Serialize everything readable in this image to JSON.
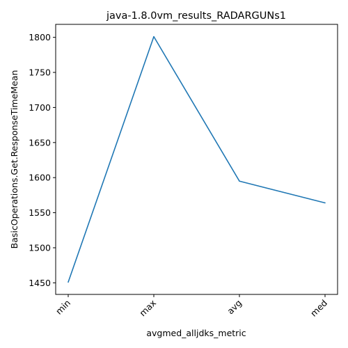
{
  "chart_data": {
    "type": "line",
    "title": "java-1.8.0vm_results_RADARGUNs1",
    "xlabel": "avgmed_alljdks_metric",
    "ylabel": "BasicOperations.Get.ResponseTimeMean",
    "categories": [
      "min",
      "max",
      "avg",
      "med"
    ],
    "series": [
      {
        "values": [
          1451,
          1801,
          1595,
          1564
        ]
      }
    ],
    "ylim": [
      1433.5,
      1818.5
    ],
    "yticks": [
      1450,
      1500,
      1550,
      1600,
      1650,
      1700,
      1750,
      1800
    ],
    "grid": false,
    "line_color": "#1f77b4"
  }
}
